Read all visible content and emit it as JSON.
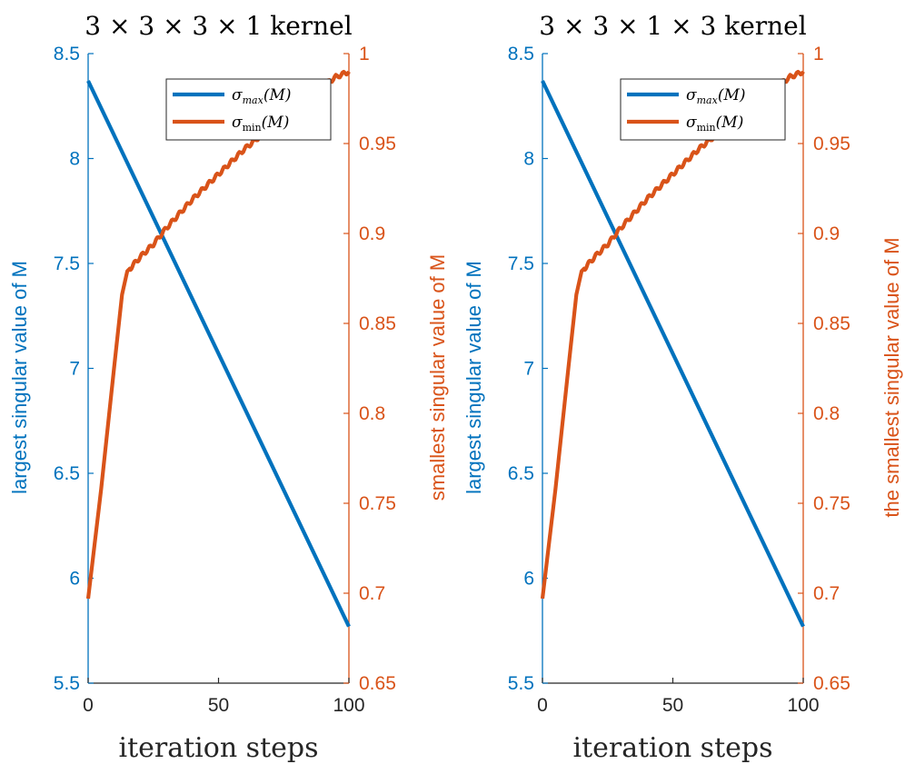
{
  "colors": {
    "left": "#0072BD",
    "right": "#D95319",
    "axis": "#262626"
  },
  "chart_data": [
    {
      "type": "line",
      "title": "3 × 3 × 3 × 1 kernel",
      "xlabel": "iteration steps",
      "ylabel_left": "largest singular value of M",
      "ylabel_right": "smallest singular value of M",
      "xlim": [
        0,
        100
      ],
      "ylim_left": [
        5.5,
        8.5
      ],
      "ylim_right": [
        0.65,
        1.0
      ],
      "xticks": [
        "0",
        "50",
        "100"
      ],
      "yticks_left": [
        "5.5",
        "6",
        "6.5",
        "7",
        "7.5",
        "8",
        "8.5"
      ],
      "yticks_right": [
        "0.65",
        "0.7",
        "0.75",
        "0.8",
        "0.85",
        "0.9",
        "0.95",
        "1"
      ],
      "legend_position": "top-right",
      "series": [
        {
          "name": "σmax(M)",
          "name_base": "σ",
          "name_sub": "max",
          "name_rest": "(M)",
          "axis": "left",
          "x": [
            0,
            100
          ],
          "values": [
            8.37,
            5.77
          ]
        },
        {
          "name": "σmin(M)",
          "name_base": "σ",
          "name_sub": "min",
          "name_rest": "(M)",
          "axis": "right",
          "x": [
            0,
            5,
            10,
            13,
            15,
            17,
            20,
            25,
            30,
            35,
            40,
            45,
            50,
            55,
            60,
            65,
            70,
            75,
            80,
            85,
            90,
            95,
            100
          ],
          "values": [
            0.697,
            0.758,
            0.826,
            0.866,
            0.879,
            0.882,
            0.887,
            0.894,
            0.903,
            0.911,
            0.919,
            0.926,
            0.933,
            0.94,
            0.947,
            0.953,
            0.959,
            0.965,
            0.971,
            0.976,
            0.982,
            0.987,
            0.99
          ]
        }
      ]
    },
    {
      "type": "line",
      "title": "3 × 3 × 1 × 3 kernel",
      "xlabel": "iteration steps",
      "ylabel_left": "largest singular value of M",
      "ylabel_right": "the smallest singular value of M",
      "xlim": [
        0,
        100
      ],
      "ylim_left": [
        5.5,
        8.5
      ],
      "ylim_right": [
        0.65,
        1.0
      ],
      "xticks": [
        "0",
        "50",
        "100"
      ],
      "yticks_left": [
        "5.5",
        "6",
        "6.5",
        "7",
        "7.5",
        "8",
        "8.5"
      ],
      "yticks_right": [
        "0.65",
        "0.7",
        "0.75",
        "0.8",
        "0.85",
        "0.9",
        "0.95",
        "1"
      ],
      "legend_position": "top-right",
      "series": [
        {
          "name": "σmax(M)",
          "name_base": "σ",
          "name_sub": "max",
          "name_rest": "(M)",
          "axis": "left",
          "x": [
            0,
            100
          ],
          "values": [
            8.37,
            5.77
          ]
        },
        {
          "name": "σmin(M)",
          "name_base": "σ",
          "name_sub": "min",
          "name_rest": "(M)",
          "axis": "right",
          "x": [
            0,
            5,
            10,
            13,
            15,
            17,
            20,
            25,
            30,
            35,
            40,
            45,
            50,
            55,
            60,
            65,
            70,
            75,
            80,
            85,
            90,
            95,
            100
          ],
          "values": [
            0.697,
            0.758,
            0.826,
            0.866,
            0.879,
            0.882,
            0.887,
            0.894,
            0.903,
            0.911,
            0.919,
            0.926,
            0.933,
            0.94,
            0.947,
            0.953,
            0.959,
            0.965,
            0.971,
            0.976,
            0.982,
            0.987,
            0.99
          ]
        }
      ]
    }
  ]
}
